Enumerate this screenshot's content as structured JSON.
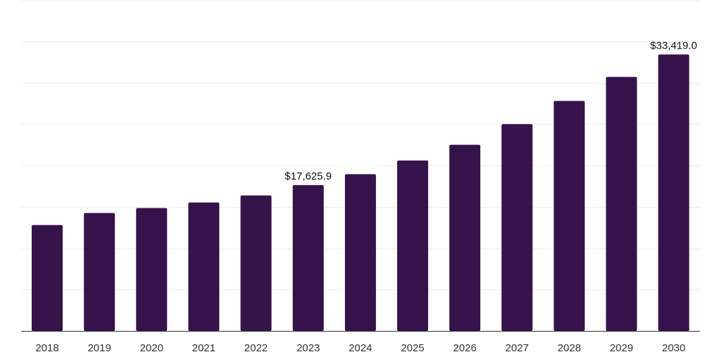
{
  "chart_data": {
    "type": "bar",
    "title": "",
    "xlabel": "",
    "ylabel": "",
    "categories": [
      "2018",
      "2019",
      "2020",
      "2021",
      "2022",
      "2023",
      "2024",
      "2025",
      "2026",
      "2027",
      "2028",
      "2029",
      "2030"
    ],
    "values": [
      12800,
      14250,
      14850,
      15520,
      16370,
      17625.9,
      18950,
      20600,
      22500,
      25000,
      27800,
      30700,
      33419.0
    ],
    "data_labels": [
      {
        "index": 5,
        "text": "$17,625.9"
      },
      {
        "index": 12,
        "text": "$33,419.0"
      }
    ],
    "ylim": [
      0,
      40000
    ],
    "y_gridline_step": 5000,
    "y_tick_labels_visible": false,
    "grid": true,
    "legend": "none",
    "colors": {
      "bar": "#36124a",
      "grid": "#f0f0f0",
      "axis": "#333333"
    }
  }
}
